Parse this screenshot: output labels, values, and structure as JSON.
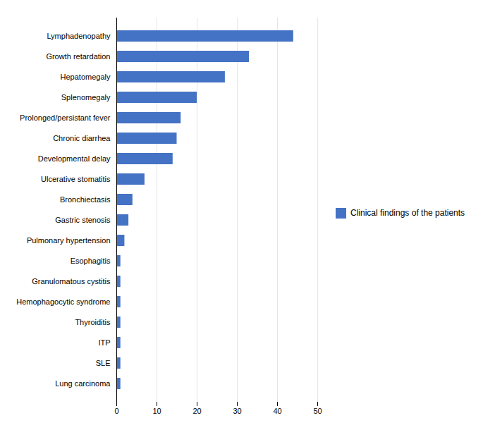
{
  "chart_data": {
    "type": "bar",
    "orientation": "horizontal",
    "categories": [
      "Lung carcinoma",
      "SLE",
      "ITP",
      "Thyroiditis",
      "Hemophagocytic syndrome",
      "Granulomatous cystitis",
      "Esophagitis",
      "Pulmonary hypertension",
      "Gastric stenosis",
      "Bronchiectasis",
      "Ulcerative stomatitis",
      "Developmental delay",
      "Chronic diarrhea",
      "Prolonged/persistant fever",
      "Splenomegaly",
      "Hepatomegaly",
      "Growth retardation",
      "Lymphadenopathy"
    ],
    "series": [
      {
        "name": "Clinical findings of the patients",
        "color": "#4472C4",
        "values": [
          1,
          1,
          1,
          1,
          1,
          1,
          1,
          2,
          3,
          4,
          7,
          14,
          15,
          16,
          20,
          27,
          33,
          44
        ]
      }
    ],
    "xlim": [
      0,
      50
    ],
    "xticks": [
      0,
      10,
      20,
      30,
      40,
      50
    ],
    "grid": true,
    "legend": "right"
  }
}
